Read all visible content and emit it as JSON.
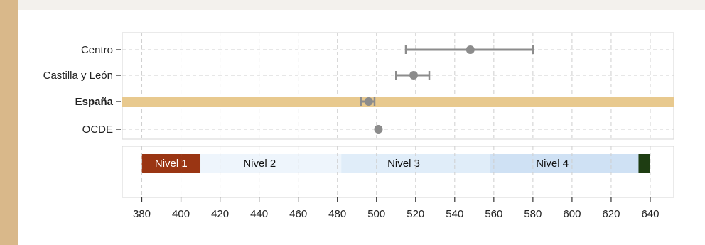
{
  "chart_data": {
    "type": "scatter",
    "title": "",
    "xlabel": "",
    "ylabel": "",
    "xlim": [
      370,
      652
    ],
    "xticks": [
      380,
      400,
      420,
      440,
      460,
      480,
      500,
      520,
      540,
      560,
      580,
      600,
      620,
      640
    ],
    "grid": true,
    "categories": [
      "Centro",
      "Castilla y León",
      "España",
      "OCDE"
    ],
    "highlight_category": "España",
    "points": [
      {
        "category": "Centro",
        "value": 548,
        "ci_low": 515,
        "ci_high": 580
      },
      {
        "category": "Castilla y León",
        "value": 519,
        "ci_low": 510,
        "ci_high": 527
      },
      {
        "category": "España",
        "value": 496,
        "ci_low": 492,
        "ci_high": 499
      },
      {
        "category": "OCDE",
        "value": 501,
        "ci_low": 500,
        "ci_high": 502
      }
    ],
    "levels": [
      {
        "name": "Nivel 1",
        "from": 380,
        "to": 410,
        "color": "#9a3513",
        "text_color": "#ffffff"
      },
      {
        "name": "Nivel 2",
        "from": 410,
        "to": 482,
        "color": "#eef5fc",
        "text_color": "#111111"
      },
      {
        "name": "Nivel 3",
        "from": 482,
        "to": 558,
        "color": "#e0edf9",
        "text_color": "#111111"
      },
      {
        "name": "Nivel 4",
        "from": 558,
        "to": 634,
        "color": "#cfe1f4",
        "text_color": "#111111"
      },
      {
        "name": "",
        "from": 634,
        "to": 640,
        "color": "#1e3d12",
        "text_color": "#ffffff"
      }
    ],
    "colors": {
      "point": "#8c8c8c",
      "highlight_band": "#e8c98e",
      "grid": "#cfcfcf"
    }
  }
}
